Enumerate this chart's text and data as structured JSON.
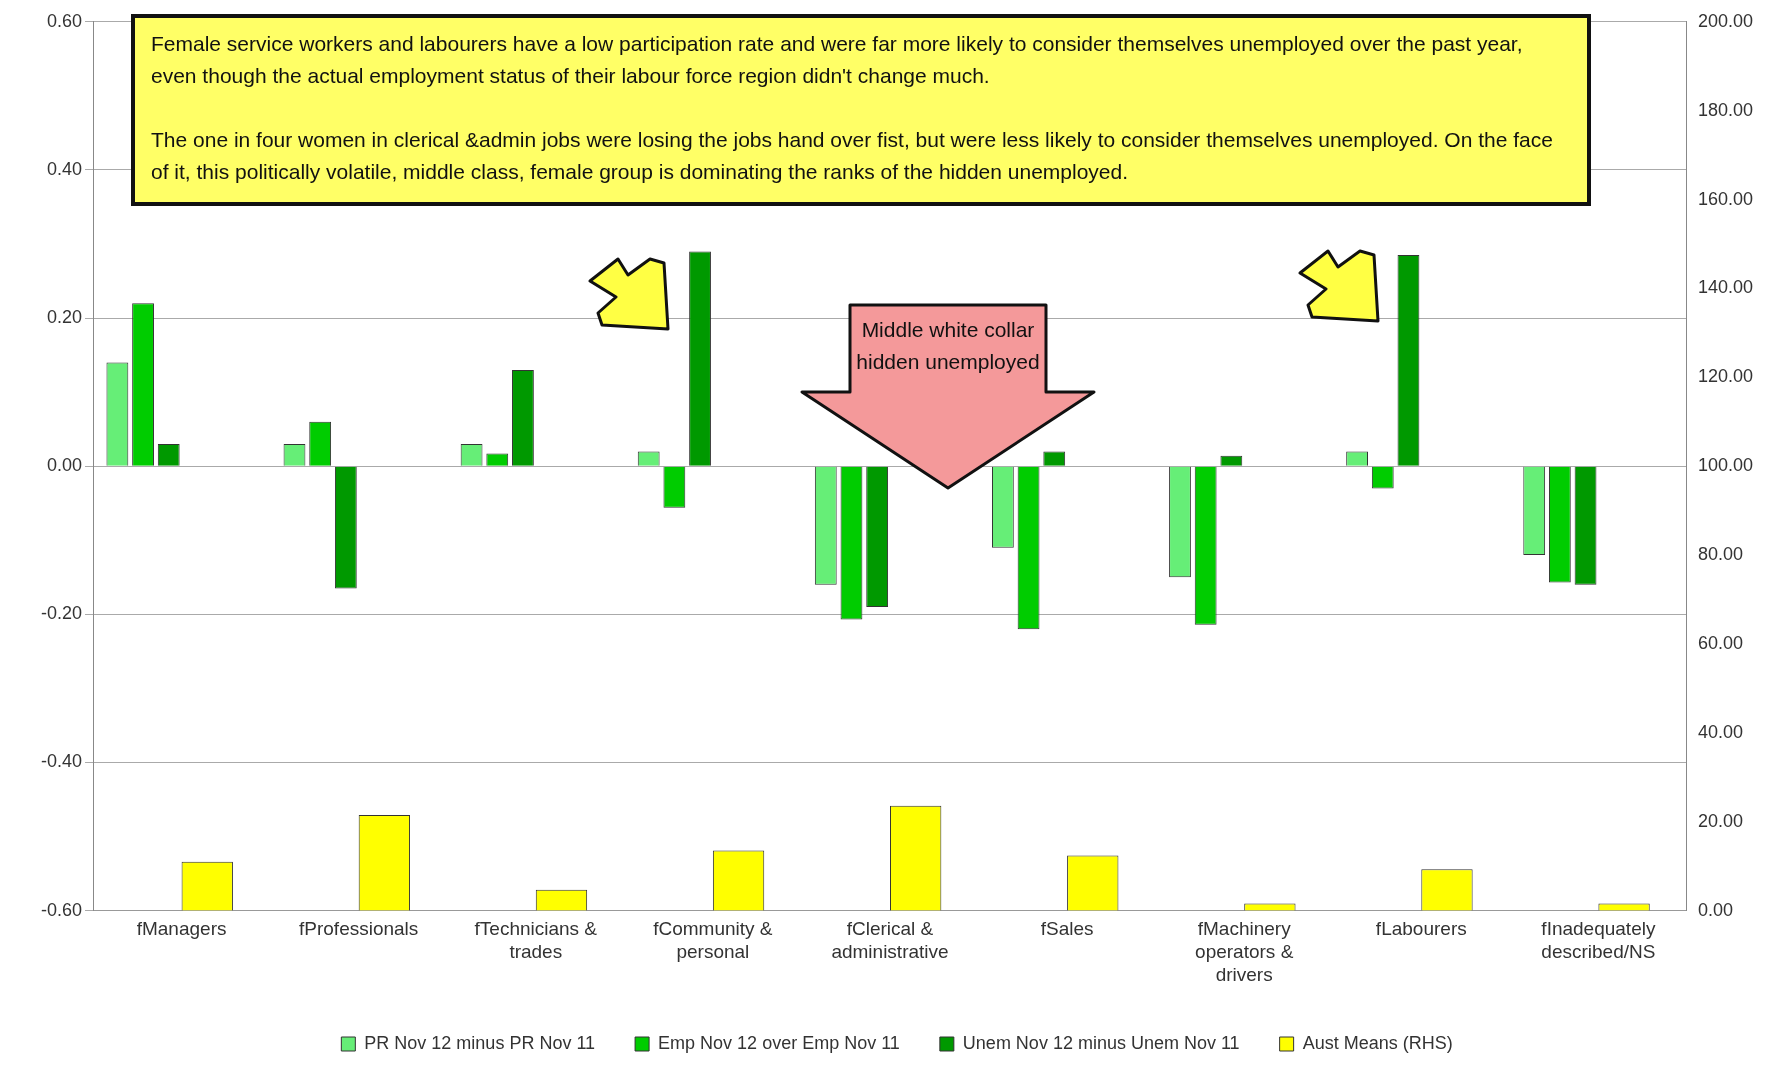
{
  "chart_data": {
    "type": "bar",
    "categories": [
      "fManagers",
      "fProfessionals",
      "fTechnicians & trades",
      "fCommunity & personal",
      "fClerical & administrative",
      "fSales",
      "fMachinery operators & drivers",
      "fLabourers",
      "fInadequately described/NS"
    ],
    "series": [
      {
        "name": "PR Nov 12 minus PR Nov 11",
        "color": "#66ee77",
        "values": [
          0.14,
          0.03,
          0.03,
          0.02,
          -0.16,
          -0.11,
          -0.15,
          0.02,
          -0.12
        ]
      },
      {
        "name": "Emp Nov 12 over Emp Nov 11",
        "color": "#00cc00",
        "values": [
          0.22,
          0.06,
          0.017,
          -0.056,
          -0.207,
          -0.22,
          -0.214,
          -0.03,
          -0.157
        ]
      },
      {
        "name": "Unem Nov 12 minus Unem Nov 11",
        "color": "#009900",
        "values": [
          0.03,
          -0.165,
          0.13,
          0.29,
          -0.19,
          0.02,
          0.014,
          0.285,
          -0.16
        ]
      },
      {
        "name": "Aust Means (RHS)",
        "color": "#ffff00",
        "axis": "y2",
        "values": [
          11,
          21.5,
          4.7,
          13.5,
          23.6,
          12.4,
          1.6,
          9.3,
          1.6
        ]
      }
    ],
    "ylim": [
      -0.6,
      0.6
    ],
    "yticks": [
      {
        "value": -0.6,
        "label": "-0.60"
      },
      {
        "value": -0.4,
        "label": "-0.40"
      },
      {
        "value": -0.2,
        "label": "-0.20"
      },
      {
        "value": 0,
        "label": "0.00"
      },
      {
        "value": 0.2,
        "label": "0.20"
      },
      {
        "value": 0.4,
        "label": "0.40"
      },
      {
        "value": 0.6,
        "label": "0.60"
      }
    ],
    "y2lim": [
      0,
      200
    ],
    "y2ticks": [
      {
        "value": 0,
        "label": "0.00"
      },
      {
        "value": 20,
        "label": "20.00"
      },
      {
        "value": 40,
        "label": "40.00"
      },
      {
        "value": 60,
        "label": "60.00"
      },
      {
        "value": 80,
        "label": "80.00"
      },
      {
        "value": 100,
        "label": "100.00"
      },
      {
        "value": 120,
        "label": "120.00"
      },
      {
        "value": 140,
        "label": "140.00"
      },
      {
        "value": 160,
        "label": "160.00"
      },
      {
        "value": 180,
        "label": "180.00"
      },
      {
        "value": 200,
        "label": "200.00"
      }
    ],
    "grid": "y",
    "legend": "bottom",
    "annotations": [
      "Female service workers and labourers have a low participation rate and were far more likely to consider themselves unemployed over the past year, even though the actual employment status  of their labour force region didn't change much.",
      "The one in four women in clerical &admin jobs were losing the jobs hand over fist, but were less likely to consider themselves unemployed. On the face of it, this politically volatile, middle class, female group is dominating the ranks of the hidden unemployed.",
      "Middle white collar hidden unemployed"
    ]
  }
}
